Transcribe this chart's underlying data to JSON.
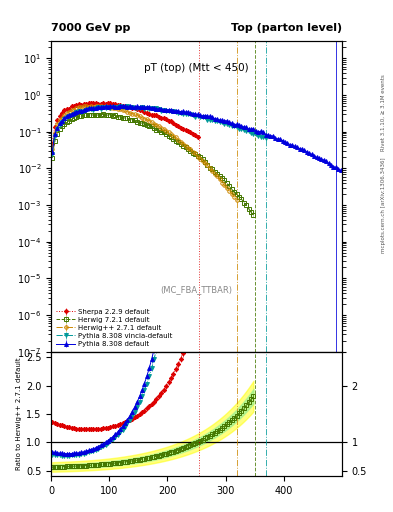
{
  "title_left": "7000 GeV pp",
  "title_right": "Top (parton level)",
  "main_title": "pT (top) (Mtt < 450)",
  "watermark": "(MC_FBA_TTBAR)",
  "right_label_top": "Rivet 3.1.10, ≥ 3.1M events",
  "right_label_bottom": "mcplots.cern.ch [arXiv:1306.3436]",
  "ylabel_ratio": "Ratio to Herwig++ 2.7.1 default",
  "ylim_main": [
    1e-07,
    30
  ],
  "ylim_ratio": [
    0.4,
    2.6
  ],
  "xlim": [
    0,
    500
  ],
  "xticks": [
    0,
    100,
    200,
    300,
    400
  ],
  "yticks_ratio": [
    0.5,
    1.0,
    1.5,
    2.0,
    2.5
  ],
  "legend_entries": [
    {
      "label": "Herwig++ 2.7.1 default",
      "color": "#cc8800",
      "marker": "o",
      "linestyle": "-."
    },
    {
      "label": "Herwig 7.2.1 default",
      "color": "#447700",
      "marker": "s",
      "linestyle": "--"
    },
    {
      "label": "Pythia 8.308 default",
      "color": "#0000dd",
      "marker": "^",
      "linestyle": "-"
    },
    {
      "label": "Pythia 8.308 vincia-default",
      "color": "#009999",
      "marker": "v",
      "linestyle": "-."
    },
    {
      "label": "Sherpa 2.2.9 default",
      "color": "#dd0000",
      "marker": "D",
      "linestyle": ":"
    }
  ],
  "cutoff_herwigpp": 320,
  "cutoff_herwig7": 350,
  "cutoff_pythia_vin": 370,
  "cutoff_sherpa": 255
}
